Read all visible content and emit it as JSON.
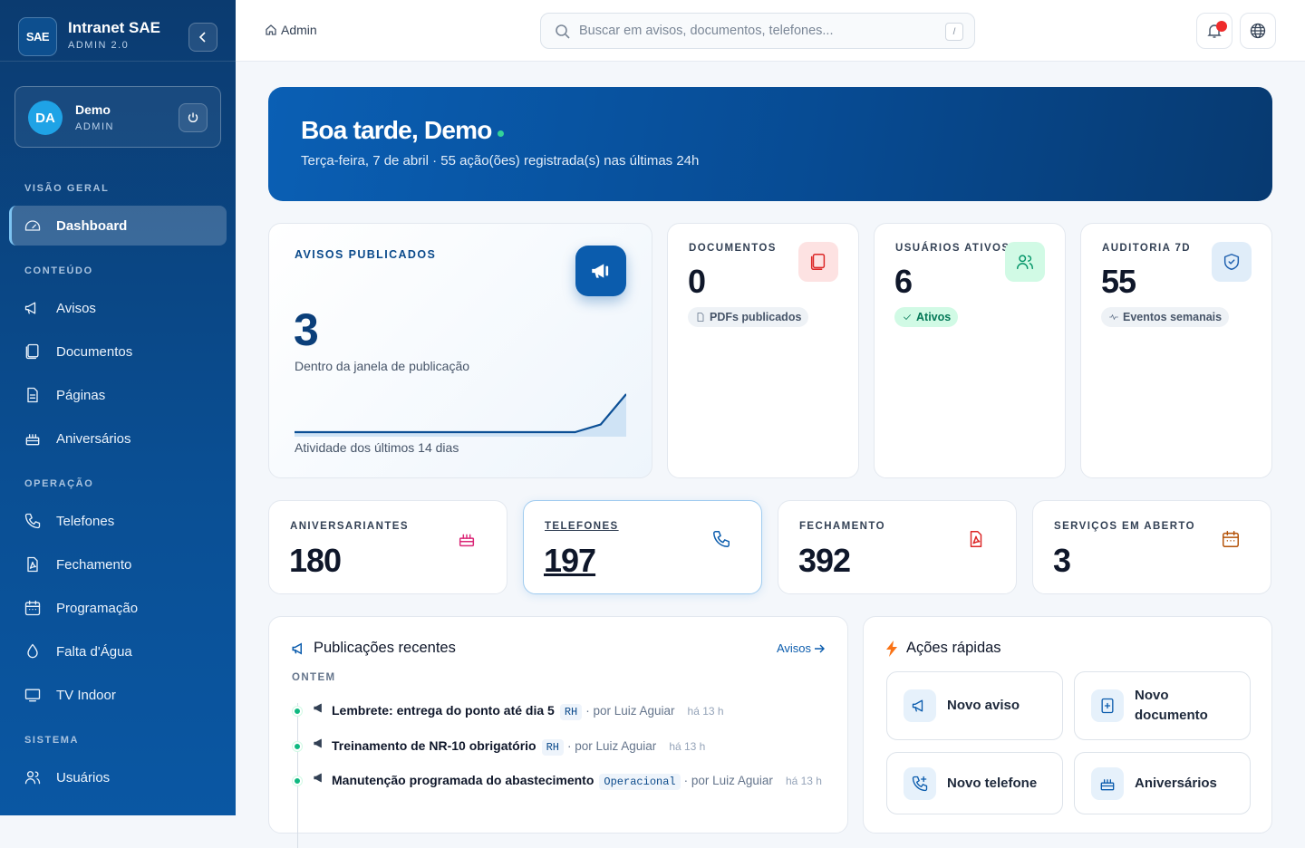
{
  "sidebar": {
    "brand": {
      "logo": "SAE",
      "name": "Intranet SAE",
      "version": "ADMIN 2.0"
    },
    "user": {
      "initials": "DA",
      "name": "Demo",
      "role": "ADMIN"
    },
    "sections": [
      {
        "title": "VISÃO GERAL",
        "items": [
          "Dashboard"
        ]
      },
      {
        "title": "CONTEÚDO",
        "items": [
          "Avisos",
          "Documentos",
          "Páginas",
          "Aniversários"
        ]
      },
      {
        "title": "OPERAÇÃO",
        "items": [
          "Telefones",
          "Fechamento",
          "Programação",
          "Falta d'Água",
          "TV Indoor"
        ]
      },
      {
        "title": "SISTEMA",
        "items": [
          "Usuários"
        ]
      }
    ]
  },
  "topbar": {
    "breadcrumb": "Admin",
    "search_placeholder": "Buscar em avisos, documentos, telefones...",
    "shortcut": "/"
  },
  "hero": {
    "greeting": "Boa tarde, Demo",
    "subtitle": "Terça-feira, 7 de abril · 55 ação(ões) registrada(s) nas últimas 24h"
  },
  "featured": {
    "label": "AVISOS PUBLICADOS",
    "value": "3",
    "caption": "Dentro da janela de publicação",
    "sparkline": {
      "values": [
        0,
        0,
        0,
        0,
        0,
        0,
        0,
        0,
        0,
        0,
        0,
        0,
        1,
        5
      ]
    },
    "footer": "Atividade dos últimos 14 dias"
  },
  "stats": [
    {
      "label": "DOCUMENTOS",
      "value": "0",
      "badge": "PDFs publicados"
    },
    {
      "label": "USUÁRIOS ATIVOS",
      "value": "6",
      "badge": "Ativos"
    },
    {
      "label": "AUDITORIA 7D",
      "value": "55",
      "badge": "Eventos semanais"
    }
  ],
  "stats2": [
    {
      "label": "ANIVERSARIANTES",
      "value": "180"
    },
    {
      "label": "TELEFONES",
      "value": "197"
    },
    {
      "label": "FECHAMENTO",
      "value": "392"
    },
    {
      "label": "SERVIÇOS EM ABERTO",
      "value": "3"
    }
  ],
  "recent": {
    "title": "Publicações recentes",
    "link": "Avisos",
    "group": "ONTEM",
    "items": [
      {
        "title": "Lembrete: entrega do ponto até dia 5",
        "tag": "RH",
        "author": "· por Luiz Aguiar",
        "time": "há 13 h"
      },
      {
        "title": "Treinamento de NR-10 obrigatório",
        "tag": "RH",
        "author": "· por Luiz Aguiar",
        "time": "há 13 h"
      },
      {
        "title": "Manutenção programada do abastecimento",
        "tag": "Operacional",
        "author": "· por Luiz Aguiar",
        "time": "há 13 h"
      }
    ]
  },
  "quick": {
    "title": "Ações rápidas",
    "actions": [
      "Novo aviso",
      "Novo documento",
      "Novo telefone",
      "Aniversários"
    ]
  }
}
